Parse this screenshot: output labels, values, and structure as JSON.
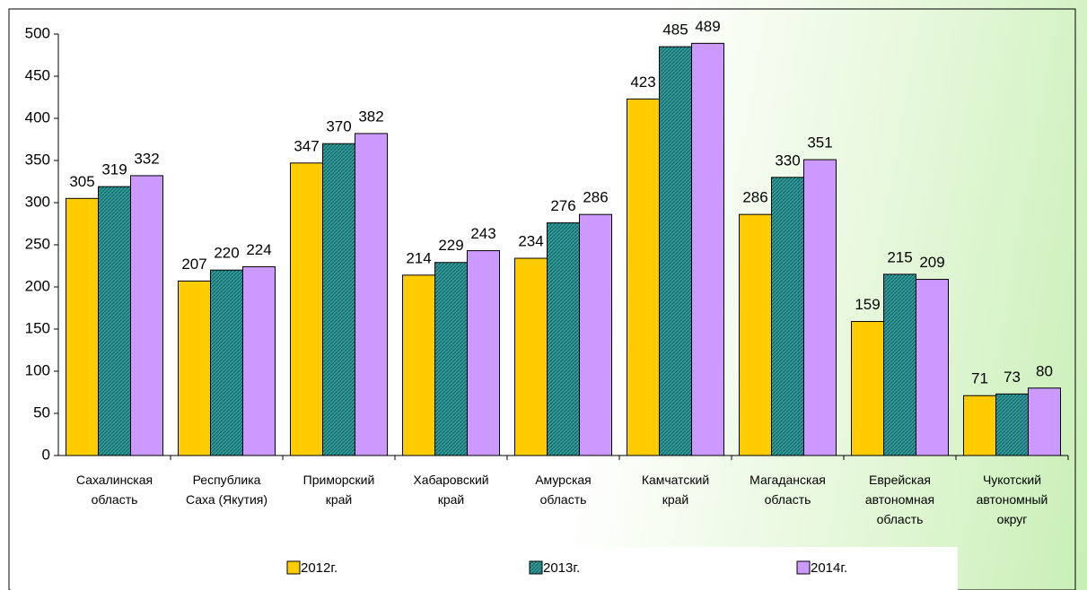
{
  "chart_data": {
    "type": "bar",
    "categories": [
      "Сахалинская\nобласть",
      "Республика\nСаха (Якутия)",
      "Приморский\nкрай",
      "Хабаровский\nкрай",
      "Амурская\nобласть",
      "Камчатский\nкрай",
      "Магаданская\nобласть",
      "Еврейская\nавтономная\nобласть",
      "Чукотский\nавтономный\nокруг"
    ],
    "series": [
      {
        "name": "2012г.",
        "color": "#ffcc00",
        "values": [
          305,
          207,
          347,
          214,
          234,
          423,
          286,
          159,
          71
        ]
      },
      {
        "name": "2013г.",
        "color": "#339999",
        "values": [
          319,
          220,
          370,
          229,
          276,
          485,
          330,
          215,
          73
        ]
      },
      {
        "name": "2014г.",
        "color": "#cc99ff",
        "values": [
          332,
          224,
          382,
          243,
          286,
          489,
          351,
          209,
          80
        ]
      }
    ],
    "ylim": [
      0,
      500
    ],
    "yticks": [
      0,
      50,
      100,
      150,
      200,
      250,
      300,
      350,
      400,
      450,
      500
    ],
    "legend": "bottom"
  }
}
